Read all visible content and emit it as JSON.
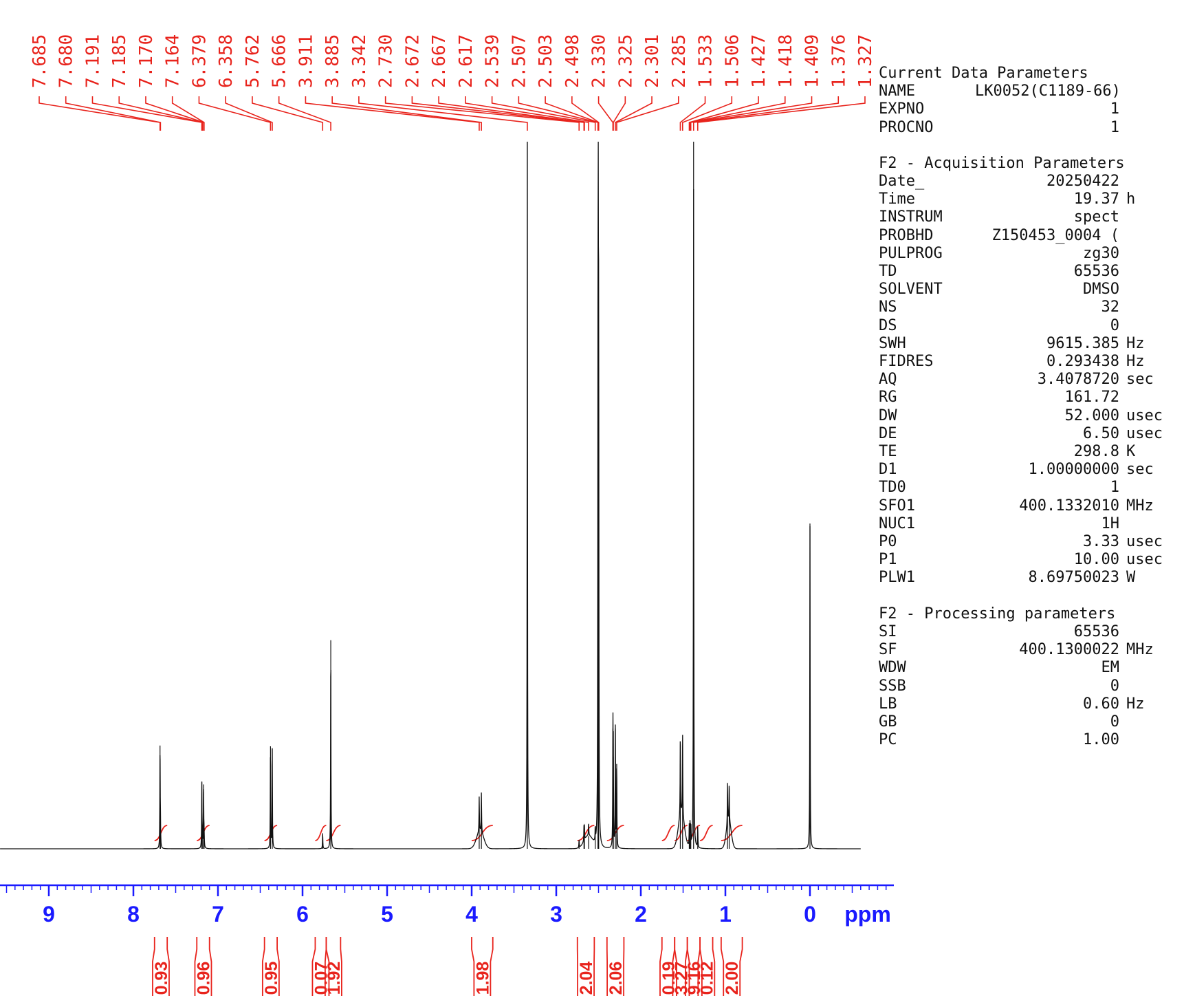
{
  "chart_data": {
    "type": "line",
    "xlabel": "ppm",
    "xlim": [
      10.0,
      -1.0
    ],
    "x_ticks": [
      "9",
      "8",
      "7",
      "6",
      "5",
      "4",
      "3",
      "2",
      "1",
      "0"
    ],
    "peak_labels": [
      "7.685",
      "7.680",
      "7.191",
      "7.185",
      "7.170",
      "7.164",
      "6.379",
      "6.358",
      "5.762",
      "5.666",
      "3.911",
      "3.885",
      "3.342",
      "2.730",
      "2.672",
      "2.667",
      "2.617",
      "2.539",
      "2.507",
      "2.503",
      "2.498",
      "2.330",
      "2.325",
      "2.301",
      "2.285",
      "1.533",
      "1.506",
      "1.427",
      "1.418",
      "1.409",
      "1.376",
      "1.327"
    ],
    "integrals": [
      {
        "value": "0.93",
        "from": 7.75,
        "to": 7.6
      },
      {
        "value": "0.96",
        "from": 7.25,
        "to": 7.1
      },
      {
        "value": "0.95",
        "from": 6.45,
        "to": 6.3
      },
      {
        "value": "0.07",
        "from": 5.85,
        "to": 5.72
      },
      {
        "value": "1.92",
        "from": 5.72,
        "to": 5.55
      },
      {
        "value": "1.98",
        "from": 4.0,
        "to": 3.75
      },
      {
        "value": "2.04",
        "from": 2.75,
        "to": 2.55
      },
      {
        "value": "2.06",
        "from": 2.4,
        "to": 2.2
      },
      {
        "value": "0.19",
        "from": 1.75,
        "to": 1.6
      },
      {
        "value": "3.27",
        "from": 1.6,
        "to": 1.45
      },
      {
        "value": "9.16",
        "from": 1.45,
        "to": 1.3
      },
      {
        "value": "0.12",
        "from": 1.3,
        "to": 1.15
      },
      {
        "value": "2.00",
        "from": 1.05,
        "to": 0.8
      }
    ],
    "peaks": [
      {
        "ppm": 7.685,
        "h": 0.146
      },
      {
        "ppm": 7.68,
        "h": 0.03
      },
      {
        "ppm": 7.191,
        "h": 0.094
      },
      {
        "ppm": 7.185,
        "h": 0.02
      },
      {
        "ppm": 7.17,
        "h": 0.091
      },
      {
        "ppm": 7.164,
        "h": 0.02
      },
      {
        "ppm": 6.379,
        "h": 0.145
      },
      {
        "ppm": 6.358,
        "h": 0.141
      },
      {
        "ppm": 5.762,
        "h": 0.022
      },
      {
        "ppm": 5.666,
        "h": 0.295
      },
      {
        "ppm": 3.911,
        "h": 0.05
      },
      {
        "ppm": 3.885,
        "h": 0.056
      },
      {
        "ppm": 3.342,
        "h": 1.0
      },
      {
        "ppm": 2.73,
        "h": 0.012
      },
      {
        "ppm": 2.672,
        "h": 0.02
      },
      {
        "ppm": 2.667,
        "h": 0.02
      },
      {
        "ppm": 2.617,
        "h": 0.018
      },
      {
        "ppm": 2.539,
        "h": 0.02
      },
      {
        "ppm": 2.507,
        "h": 0.55
      },
      {
        "ppm": 2.503,
        "h": 0.85
      },
      {
        "ppm": 2.498,
        "h": 0.62
      },
      {
        "ppm": 2.33,
        "h": 0.17
      },
      {
        "ppm": 2.325,
        "h": 0.13
      },
      {
        "ppm": 2.301,
        "h": 0.17
      },
      {
        "ppm": 2.285,
        "h": 0.12
      },
      {
        "ppm": 1.533,
        "h": 0.12
      },
      {
        "ppm": 1.506,
        "h": 0.115
      },
      {
        "ppm": 1.427,
        "h": 0.03
      },
      {
        "ppm": 1.418,
        "h": 0.035
      },
      {
        "ppm": 1.409,
        "h": 0.03
      },
      {
        "ppm": 1.376,
        "h": 1.0
      },
      {
        "ppm": 1.327,
        "h": 0.03
      },
      {
        "ppm": 0.975,
        "h": 0.06
      },
      {
        "ppm": 0.955,
        "h": 0.055
      },
      {
        "ppm": 0.0,
        "h": 0.46
      }
    ],
    "colors": {
      "spectrum": "#111111",
      "annotation": "#e8231c",
      "axis": "#1a1aff"
    }
  },
  "parameters": [
    {
      "title": "Current Data Parameters",
      "rows": [
        {
          "name": "NAME",
          "value": "LK0052(C1189-66)",
          "unit": ""
        },
        {
          "name": "EXPNO",
          "value": "1",
          "unit": ""
        },
        {
          "name": "PROCNO",
          "value": "1",
          "unit": ""
        }
      ]
    },
    {
      "title": "F2 - Acquisition Parameters",
      "rows": [
        {
          "name": "Date_",
          "value": "20250422",
          "unit": ""
        },
        {
          "name": "Time",
          "value": "19.37",
          "unit": "h"
        },
        {
          "name": "INSTRUM",
          "value": "spect",
          "unit": ""
        },
        {
          "name": "PROBHD",
          "value": "Z150453_0004 (",
          "unit": ""
        },
        {
          "name": "PULPROG",
          "value": "zg30",
          "unit": ""
        },
        {
          "name": "TD",
          "value": "65536",
          "unit": ""
        },
        {
          "name": "SOLVENT",
          "value": "DMSO",
          "unit": ""
        },
        {
          "name": "NS",
          "value": "32",
          "unit": ""
        },
        {
          "name": "DS",
          "value": "0",
          "unit": ""
        },
        {
          "name": "SWH",
          "value": "9615.385",
          "unit": "Hz"
        },
        {
          "name": "FIDRES",
          "value": "0.293438",
          "unit": "Hz"
        },
        {
          "name": "AQ",
          "value": "3.4078720",
          "unit": "sec"
        },
        {
          "name": "RG",
          "value": "161.72",
          "unit": ""
        },
        {
          "name": "DW",
          "value": "52.000",
          "unit": "usec"
        },
        {
          "name": "DE",
          "value": "6.50",
          "unit": "usec"
        },
        {
          "name": "TE",
          "value": "298.8",
          "unit": "K"
        },
        {
          "name": "D1",
          "value": "1.00000000",
          "unit": "sec"
        },
        {
          "name": "TD0",
          "value": "1",
          "unit": ""
        },
        {
          "name": "SFO1",
          "value": "400.1332010",
          "unit": "MHz"
        },
        {
          "name": "NUC1",
          "value": "1H",
          "unit": ""
        },
        {
          "name": "P0",
          "value": "3.33",
          "unit": "usec"
        },
        {
          "name": "P1",
          "value": "10.00",
          "unit": "usec"
        },
        {
          "name": "PLW1",
          "value": "8.69750023",
          "unit": "W"
        }
      ]
    },
    {
      "title": "F2 - Processing parameters",
      "rows": [
        {
          "name": "SI",
          "value": "65536",
          "unit": ""
        },
        {
          "name": "SF",
          "value": "400.1300022",
          "unit": "MHz"
        },
        {
          "name": "WDW",
          "value": "EM",
          "unit": ""
        },
        {
          "name": "SSB",
          "value": "0",
          "unit": ""
        },
        {
          "name": "LB",
          "value": "0.60",
          "unit": "Hz"
        },
        {
          "name": "GB",
          "value": "0",
          "unit": ""
        },
        {
          "name": "PC",
          "value": "1.00",
          "unit": ""
        }
      ]
    }
  ]
}
